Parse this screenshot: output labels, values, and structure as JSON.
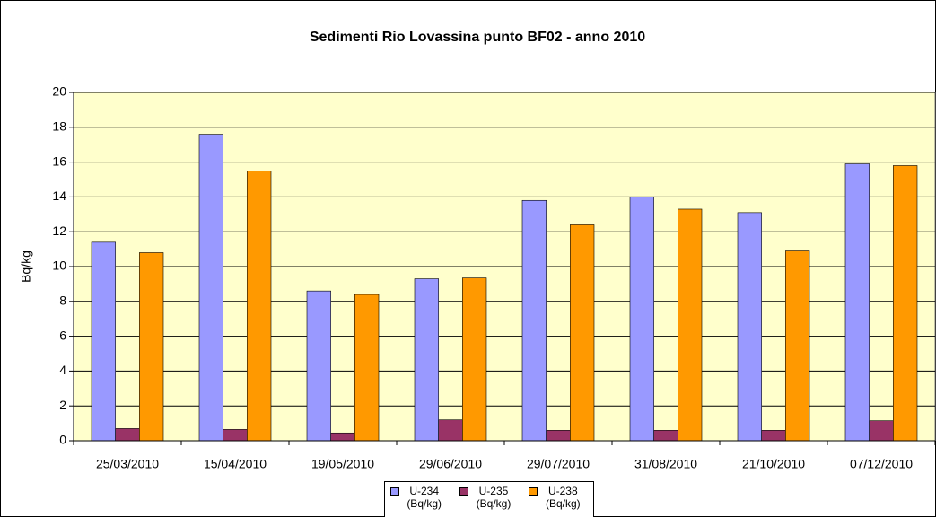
{
  "chart_data": {
    "type": "bar",
    "title": "Sedimenti Rio Lovassina punto BF02 - anno 2010",
    "y_label": "Bq/kg",
    "categories": [
      "25/03/2010",
      "15/04/2010",
      "19/05/2010",
      "29/06/2010",
      "29/07/2010",
      "31/08/2010",
      "21/10/2010",
      "07/12/2010"
    ],
    "series": [
      {
        "name": "U-234 (Bq/kg)",
        "color": "#9999ff",
        "values": [
          11.4,
          17.6,
          8.6,
          9.3,
          13.8,
          14.0,
          13.1,
          15.9
        ]
      },
      {
        "name": "U-235 (Bq/kg)",
        "color": "#993366",
        "values": [
          0.7,
          0.65,
          0.45,
          1.2,
          0.6,
          0.6,
          0.6,
          1.15
        ]
      },
      {
        "name": "U-238 (Bq/kg)",
        "color": "#ff9900",
        "values": [
          10.8,
          15.5,
          8.4,
          9.35,
          12.4,
          13.3,
          10.9,
          15.8
        ]
      }
    ],
    "ylim": [
      0,
      20
    ],
    "yticks": [
      0,
      2,
      4,
      6,
      8,
      10,
      12,
      14,
      16,
      18,
      20
    ],
    "grid": true,
    "legend": "bottom",
    "plot_background": "#ffffcc"
  }
}
